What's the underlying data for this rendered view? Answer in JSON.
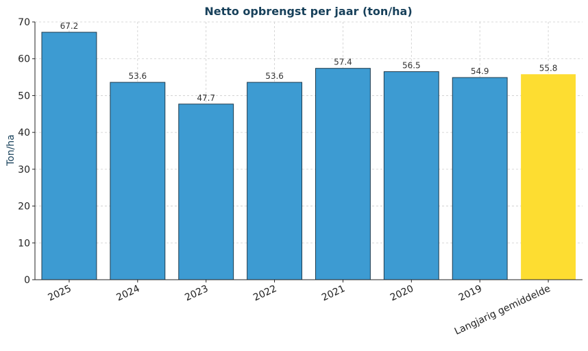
{
  "chart_data": {
    "type": "bar",
    "title": "Netto opbrengst per jaar (ton/ha)",
    "xlabel": "",
    "ylabel": "Ton/ha",
    "categories": [
      "2025",
      "2024",
      "2023",
      "2022",
      "2021",
      "2020",
      "2019",
      "Langjarig gemiddelde"
    ],
    "values": [
      67.2,
      53.6,
      47.7,
      53.6,
      57.4,
      56.5,
      54.9,
      55.8
    ],
    "value_labels": [
      "67.2",
      "53.6",
      "47.7",
      "53.6",
      "57.4",
      "56.5",
      "54.9",
      "55.8"
    ],
    "ylim": [
      0,
      70
    ],
    "yticks": [
      0,
      10,
      20,
      30,
      40,
      50,
      60,
      70
    ],
    "grid": true,
    "colors": {
      "bar": "#3d9bd2",
      "bar_edge": "#1f3b4d",
      "highlight": "#fddd31",
      "title": "#17405a"
    },
    "highlight_category": "Langjarig gemiddelde"
  }
}
